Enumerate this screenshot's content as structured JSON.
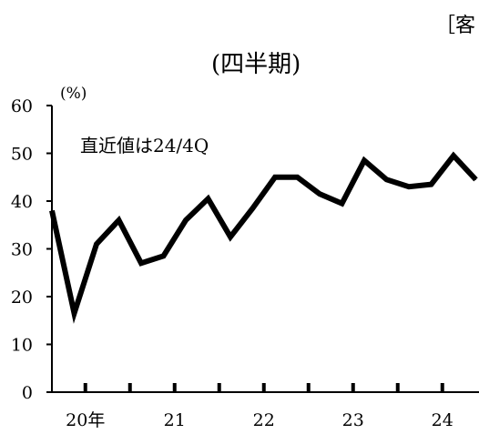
{
  "header": {
    "top_label": "［客"
  },
  "chart_data": {
    "type": "line",
    "title": "(四半期)",
    "ylabel": "(%)",
    "xlabel": "",
    "ylim": [
      0,
      60
    ],
    "yticks": [
      0,
      10,
      20,
      30,
      40,
      50,
      60
    ],
    "grid": false,
    "annotation": "直近値は24/4Q",
    "x_tick_labels": [
      "20年",
      "21",
      "22",
      "23",
      "24"
    ],
    "x": [
      "20Q1",
      "20Q2",
      "20Q3",
      "20Q4",
      "21Q1",
      "21Q2",
      "21Q3",
      "21Q4",
      "22Q1",
      "22Q2",
      "22Q3",
      "22Q4",
      "23Q1",
      "23Q2",
      "23Q3",
      "23Q4",
      "24Q1",
      "24Q2",
      "24Q3",
      "24Q4"
    ],
    "series": [
      {
        "values": [
          38,
          16.5,
          31,
          36,
          27,
          28.5,
          36,
          40.5,
          32.5,
          38.5,
          45,
          45,
          41.5,
          39.5,
          48.5,
          44.5,
          43,
          43.5,
          49.5,
          44.5
        ],
        "color": "#000000"
      }
    ]
  }
}
